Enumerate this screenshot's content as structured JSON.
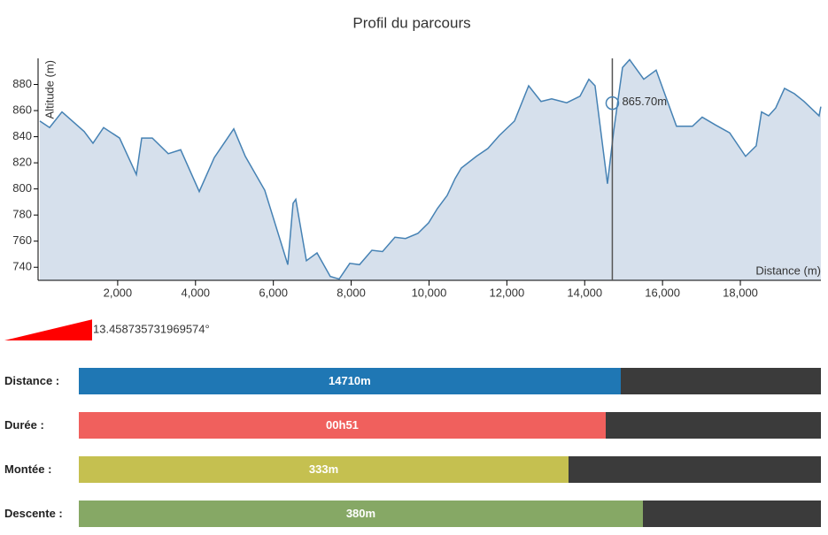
{
  "chart_data": {
    "type": "area",
    "title": "Profil du parcours",
    "y_label": "Altitude (m)",
    "x_label": "Distance (m)",
    "color": "#4682b4",
    "fill": "#d6e0ec",
    "x": [
      0,
      250,
      569,
      1138,
      1365,
      1638,
      2048,
      2480,
      2617,
      2890,
      3300,
      3618,
      4096,
      4482,
      4733,
      4983,
      5279,
      5779,
      6371,
      6507,
      6576,
      6849,
      7122,
      7463,
      7691,
      7964,
      8214,
      8532,
      8805,
      9124,
      9397,
      9716,
      9989,
      10216,
      10466,
      10671,
      10830,
      11217,
      11513,
      11809,
      12196,
      12560,
      12878,
      13151,
      13538,
      13879,
      14107,
      14266,
      14585,
      14744,
      14972,
      15154,
      15518,
      15836,
      16359,
      16769,
      17019,
      17361,
      17725,
      18134,
      18407,
      18544,
      18726,
      18908,
      19135,
      19386,
      19636,
      20023,
      20068
    ],
    "values": [
      852,
      847,
      859,
      844,
      835,
      847,
      839,
      811,
      839,
      839,
      827,
      830,
      798,
      824,
      835,
      846,
      825,
      799,
      742,
      789,
      792,
      745,
      751,
      733,
      731,
      743,
      742,
      753,
      752,
      763,
      762,
      766,
      774,
      785,
      795,
      808,
      816,
      825,
      831,
      841,
      852,
      879,
      867,
      869,
      866,
      871,
      884,
      879,
      804,
      844,
      893,
      899,
      884,
      891,
      848,
      848,
      855,
      849,
      843,
      825,
      833,
      859,
      856,
      862,
      877,
      873,
      867,
      856,
      863
    ],
    "xlim": [
      0,
      20070
    ],
    "ylim": [
      730,
      900
    ],
    "xticks": [
      {
        "value": 2000,
        "label": "2,000"
      },
      {
        "value": 4000,
        "label": "4,000"
      },
      {
        "value": 6000,
        "label": "6,000"
      },
      {
        "value": 8000,
        "label": "8,000"
      },
      {
        "value": 10000,
        "label": "10,000"
      },
      {
        "value": 12000,
        "label": "12,000"
      },
      {
        "value": 14000,
        "label": "14,000"
      },
      {
        "value": 16000,
        "label": "16,000"
      },
      {
        "value": 18000,
        "label": "18,000"
      }
    ],
    "yticks": [
      740,
      760,
      780,
      800,
      820,
      840,
      860,
      880
    ],
    "marker": {
      "x": 14710,
      "y": 865.7,
      "label": "865.70m"
    }
  },
  "slope": {
    "value": 13.458735731969574,
    "label": "13.458735731969574°",
    "color": "#ff0000"
  },
  "stats": [
    {
      "label": "Distance :",
      "value": "14710m",
      "color": "#1f77b4",
      "percent": 73
    },
    {
      "label": "Durée :",
      "value": "00h51",
      "color": "#f0605d",
      "percent": 71
    },
    {
      "label": "Montée :",
      "value": "333m",
      "color": "#c5c050",
      "percent": 66
    },
    {
      "label": "Descente :",
      "value": "380m",
      "color": "#86a865",
      "percent": 76
    }
  ]
}
